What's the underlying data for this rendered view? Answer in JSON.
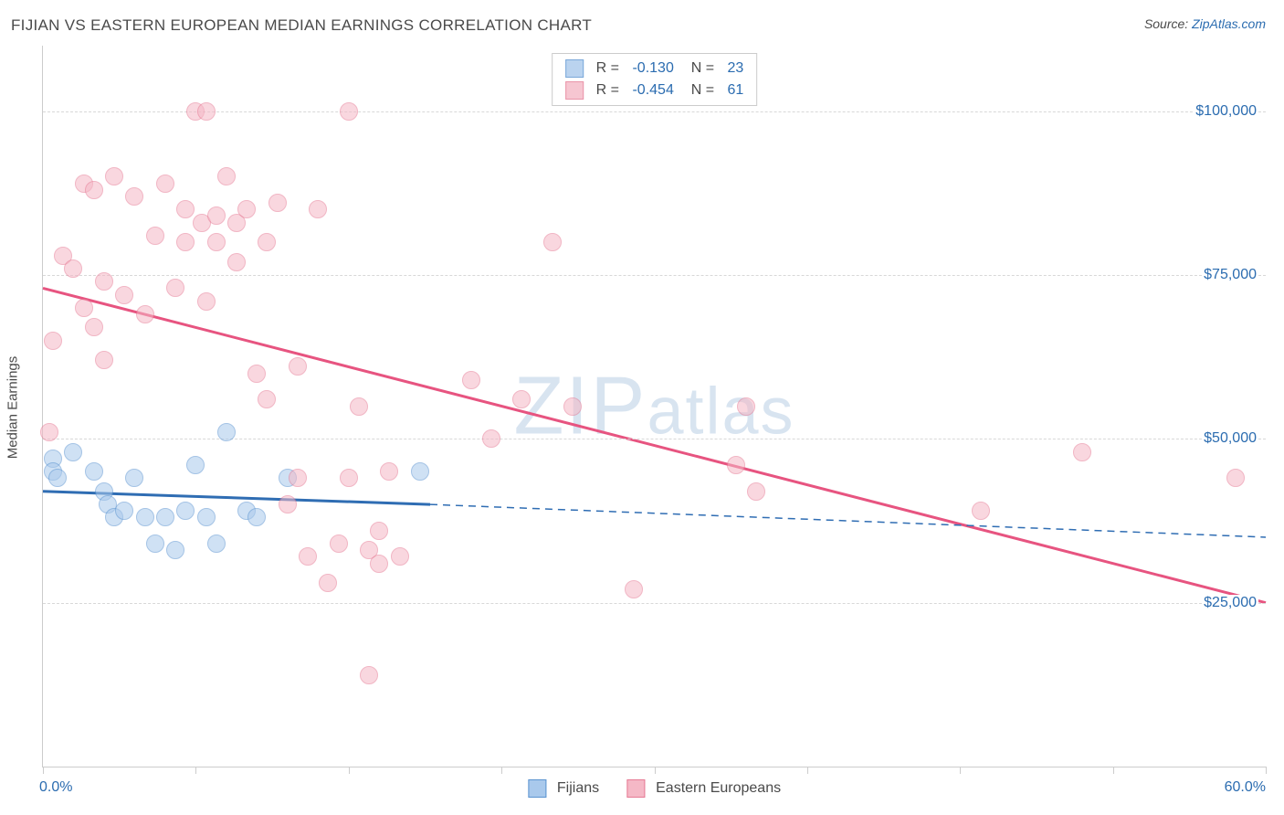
{
  "title": "FIJIAN VS EASTERN EUROPEAN MEDIAN EARNINGS CORRELATION CHART",
  "source_label": "Source: ",
  "source_link": "ZipAtlas.com",
  "watermark": "ZIPatlas",
  "y_axis_title": "Median Earnings",
  "chart": {
    "type": "scatter",
    "background_color": "#ffffff",
    "grid_color": "#d8d8d8",
    "axis_color": "#cccccc",
    "xlim": [
      0,
      60
    ],
    "ylim": [
      0,
      110000
    ],
    "x_tick_positions": [
      0,
      7.5,
      15,
      22.5,
      30,
      37.5,
      45,
      52.5,
      60
    ],
    "y_ticks": [
      25000,
      50000,
      75000,
      100000
    ],
    "y_tick_labels": [
      "$25,000",
      "$50,000",
      "$75,000",
      "$100,000"
    ],
    "x_label_min": "0.0%",
    "x_label_max": "60.0%",
    "marker_radius": 10,
    "marker_border_width": 1.5,
    "trend_line_width_solid": 3,
    "trend_line_width_dash": 1.5,
    "series": [
      {
        "name": "Fijians",
        "fill_color": "#a9c9ec",
        "fill_opacity": 0.55,
        "border_color": "#5a93d0",
        "R": "-0.130",
        "N": "23",
        "trend": {
          "x1": 0,
          "y1": 42000,
          "x2_solid": 19,
          "y2_solid": 40000,
          "x2_dash": 60,
          "y2_dash": 35000,
          "color": "#2f6db3"
        },
        "points": [
          {
            "x": 0.5,
            "y": 47000
          },
          {
            "x": 0.5,
            "y": 45000
          },
          {
            "x": 0.7,
            "y": 44000
          },
          {
            "x": 1.5,
            "y": 48000
          },
          {
            "x": 2.5,
            "y": 45000
          },
          {
            "x": 3.0,
            "y": 42000
          },
          {
            "x": 3.2,
            "y": 40000
          },
          {
            "x": 3.5,
            "y": 38000
          },
          {
            "x": 4.0,
            "y": 39000
          },
          {
            "x": 4.5,
            "y": 44000
          },
          {
            "x": 5.0,
            "y": 38000
          },
          {
            "x": 5.5,
            "y": 34000
          },
          {
            "x": 6.0,
            "y": 38000
          },
          {
            "x": 6.5,
            "y": 33000
          },
          {
            "x": 7.0,
            "y": 39000
          },
          {
            "x": 7.5,
            "y": 46000
          },
          {
            "x": 8.0,
            "y": 38000
          },
          {
            "x": 8.5,
            "y": 34000
          },
          {
            "x": 9.0,
            "y": 51000
          },
          {
            "x": 10.0,
            "y": 39000
          },
          {
            "x": 10.5,
            "y": 38000
          },
          {
            "x": 12.0,
            "y": 44000
          },
          {
            "x": 18.5,
            "y": 45000
          }
        ]
      },
      {
        "name": "Eastern Europeans",
        "fill_color": "#f5b8c6",
        "fill_opacity": 0.55,
        "border_color": "#e67a94",
        "R": "-0.454",
        "N": "61",
        "trend": {
          "x1": 0,
          "y1": 73000,
          "x2_solid": 60,
          "y2_solid": 25000,
          "color": "#e75480"
        },
        "points": [
          {
            "x": 0.3,
            "y": 51000
          },
          {
            "x": 0.5,
            "y": 65000
          },
          {
            "x": 1.0,
            "y": 78000
          },
          {
            "x": 1.5,
            "y": 76000
          },
          {
            "x": 2.0,
            "y": 70000
          },
          {
            "x": 2.0,
            "y": 89000
          },
          {
            "x": 2.5,
            "y": 67000
          },
          {
            "x": 2.5,
            "y": 88000
          },
          {
            "x": 3.0,
            "y": 62000
          },
          {
            "x": 3.0,
            "y": 74000
          },
          {
            "x": 3.5,
            "y": 90000
          },
          {
            "x": 4.0,
            "y": 72000
          },
          {
            "x": 4.5,
            "y": 87000
          },
          {
            "x": 5.0,
            "y": 69000
          },
          {
            "x": 5.5,
            "y": 81000
          },
          {
            "x": 6.0,
            "y": 89000
          },
          {
            "x": 6.5,
            "y": 73000
          },
          {
            "x": 7.0,
            "y": 85000
          },
          {
            "x": 7.0,
            "y": 80000
          },
          {
            "x": 7.5,
            "y": 100000
          },
          {
            "x": 7.8,
            "y": 83000
          },
          {
            "x": 8.0,
            "y": 71000
          },
          {
            "x": 8.0,
            "y": 100000
          },
          {
            "x": 8.5,
            "y": 84000
          },
          {
            "x": 8.5,
            "y": 80000
          },
          {
            "x": 9.0,
            "y": 90000
          },
          {
            "x": 9.5,
            "y": 77000
          },
          {
            "x": 9.5,
            "y": 83000
          },
          {
            "x": 10.0,
            "y": 85000
          },
          {
            "x": 10.5,
            "y": 60000
          },
          {
            "x": 11.0,
            "y": 80000
          },
          {
            "x": 11.0,
            "y": 56000
          },
          {
            "x": 11.5,
            "y": 86000
          },
          {
            "x": 12.0,
            "y": 40000
          },
          {
            "x": 12.5,
            "y": 61000
          },
          {
            "x": 12.5,
            "y": 44000
          },
          {
            "x": 13.0,
            "y": 32000
          },
          {
            "x": 13.5,
            "y": 85000
          },
          {
            "x": 14.0,
            "y": 28000
          },
          {
            "x": 14.5,
            "y": 34000
          },
          {
            "x": 15.0,
            "y": 100000
          },
          {
            "x": 15.0,
            "y": 44000
          },
          {
            "x": 15.5,
            "y": 55000
          },
          {
            "x": 16.0,
            "y": 33000
          },
          {
            "x": 16.0,
            "y": 14000
          },
          {
            "x": 16.5,
            "y": 36000
          },
          {
            "x": 16.5,
            "y": 31000
          },
          {
            "x": 17.0,
            "y": 45000
          },
          {
            "x": 17.5,
            "y": 32000
          },
          {
            "x": 21.0,
            "y": 59000
          },
          {
            "x": 22.0,
            "y": 50000
          },
          {
            "x": 23.5,
            "y": 56000
          },
          {
            "x": 25.0,
            "y": 80000
          },
          {
            "x": 26.0,
            "y": 55000
          },
          {
            "x": 29.0,
            "y": 27000
          },
          {
            "x": 34.0,
            "y": 46000
          },
          {
            "x": 34.5,
            "y": 55000
          },
          {
            "x": 35.0,
            "y": 42000
          },
          {
            "x": 46.0,
            "y": 39000
          },
          {
            "x": 51.0,
            "y": 48000
          },
          {
            "x": 58.5,
            "y": 44000
          }
        ]
      }
    ]
  }
}
